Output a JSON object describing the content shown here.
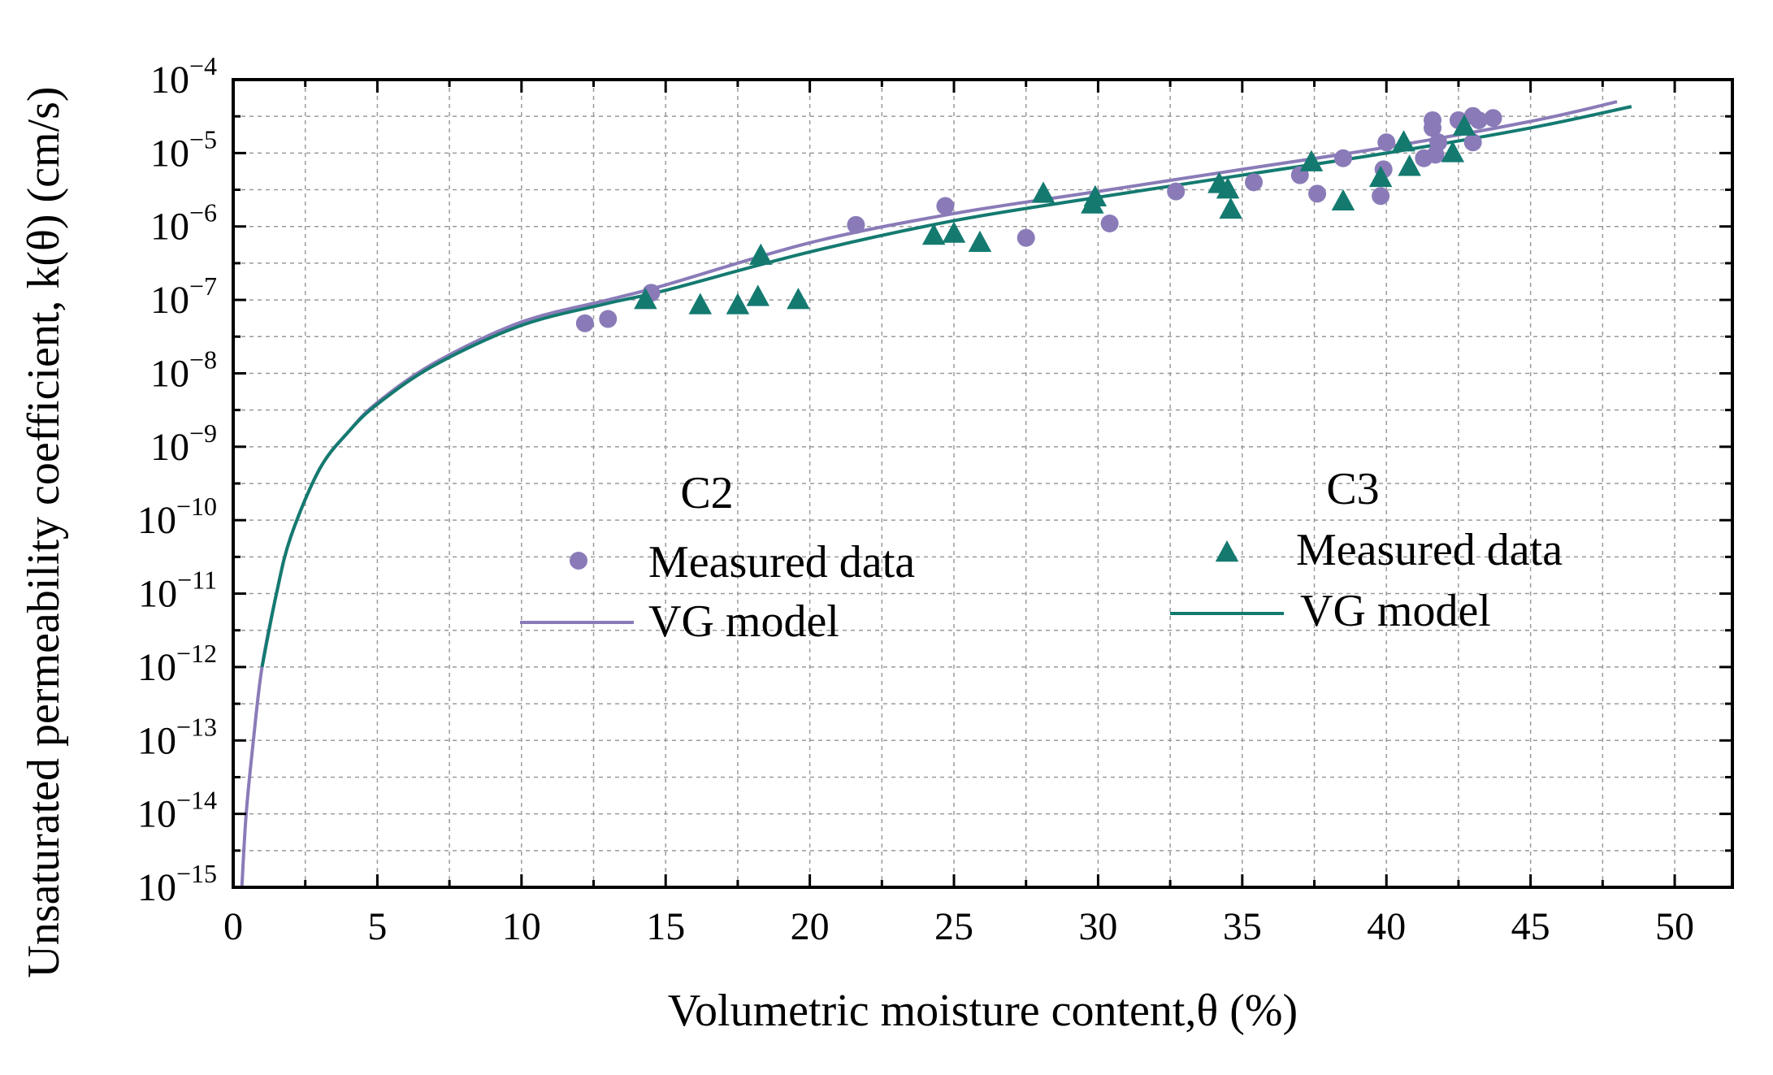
{
  "chart_data": {
    "type": "scatter",
    "xlabel": "Volumetric moisture content,θ (%)",
    "ylabel": "Unsaturated permeability coefficient, k(θ) (cm/s)",
    "xlim": [
      0,
      52
    ],
    "ylim_log10": [
      -15,
      -4
    ],
    "y_scale": "log",
    "grid": true,
    "x_ticks": [
      0,
      5,
      10,
      15,
      20,
      25,
      30,
      35,
      40,
      45,
      50
    ],
    "x_tick_labels": [
      "0",
      "5",
      "10",
      "15",
      "20",
      "25",
      "30",
      "35",
      "40",
      "45",
      "50"
    ],
    "y_tick_exponents": [
      -15,
      -14,
      -13,
      -12,
      -11,
      -10,
      -9,
      -8,
      -7,
      -6,
      -5,
      -4
    ],
    "y_tick_base": "10",
    "legend_groups": [
      {
        "header": "C2",
        "measured_label": "Measured data",
        "model_label": "VG model",
        "marker": "circle",
        "color": "#8a7bb8",
        "line_color": "#8a7bb8"
      },
      {
        "header": "C3",
        "measured_label": "Measured data",
        "model_label": "VG model",
        "marker": "triangle",
        "color": "#147a70",
        "line_color": "#147a70"
      }
    ],
    "series": [
      {
        "name": "C2 Measured data",
        "marker": "circle",
        "color": "#8a7bb8",
        "x": [
          12.2,
          13.0,
          14.5,
          21.6,
          24.7,
          27.5,
          30.4,
          32.7,
          35.4,
          37.0,
          37.6,
          38.5,
          39.8,
          39.9,
          40.0,
          41.3,
          41.6,
          41.6,
          41.7,
          41.8,
          42.5,
          43.0,
          43.0,
          43.2,
          43.7
        ],
        "y": [
          4.8e-08,
          5.5e-08,
          1.25e-07,
          1.05e-06,
          1.9e-06,
          7e-07,
          1.1e-06,
          3e-06,
          4e-06,
          5e-06,
          2.8e-06,
          8.5e-06,
          2.6e-06,
          6e-06,
          1.4e-05,
          8.5e-06,
          2.2e-05,
          2.8e-05,
          9.5e-06,
          1.4e-05,
          2.8e-05,
          3.2e-05,
          1.4e-05,
          2.8e-05,
          3e-05
        ]
      },
      {
        "name": "C3 Measured data",
        "marker": "triangle",
        "color": "#147a70",
        "x": [
          14.3,
          16.2,
          17.5,
          18.2,
          18.3,
          19.6,
          24.3,
          25.0,
          25.9,
          28.1,
          29.8,
          29.9,
          34.2,
          34.5,
          34.6,
          37.4,
          38.5,
          39.8,
          40.6,
          40.8,
          42.3,
          42.7
        ],
        "y": [
          1e-07,
          8.5e-08,
          8.5e-08,
          1.1e-07,
          4e-07,
          1e-07,
          7.5e-07,
          8e-07,
          6e-07,
          2.8e-06,
          2e-06,
          2.5e-06,
          3.8e-06,
          3.2e-06,
          1.7e-06,
          7.5e-06,
          2.2e-06,
          4.6e-06,
          1.4e-05,
          6.5e-06,
          1e-05,
          2.3e-05
        ]
      },
      {
        "name": "C2 VG model",
        "color": "#8a7bb8",
        "x": [
          0.3,
          0.45,
          0.7,
          1.0,
          1.5,
          2.0,
          3.0,
          4.0,
          5.0,
          7.0,
          10.0,
          13.0,
          15.0,
          20.0,
          25.0,
          30.0,
          35.0,
          40.0,
          45.0,
          48.0
        ],
        "y": [
          1e-15,
          1e-14,
          1e-13,
          1e-12,
          1e-11,
          6e-11,
          5e-10,
          1.6e-09,
          4e-09,
          1.4e-08,
          5e-08,
          1e-07,
          1.6e-07,
          6e-07,
          1.5e-06,
          3e-06,
          6e-06,
          1.2e-05,
          2.7e-05,
          5e-05
        ]
      },
      {
        "name": "C3 VG model",
        "color": "#147a70",
        "x": [
          1.0,
          1.5,
          2.0,
          3.0,
          4.0,
          5.0,
          7.0,
          10.0,
          13.0,
          15.0,
          20.0,
          25.0,
          30.0,
          35.0,
          40.0,
          45.0,
          48.5
        ],
        "y": [
          1e-12,
          1e-11,
          6e-11,
          5e-10,
          1.6e-09,
          3.8e-09,
          1.3e-08,
          4.5e-08,
          9e-08,
          1.35e-07,
          4.5e-07,
          1.2e-06,
          2.5e-06,
          5e-06,
          1e-05,
          2.2e-05,
          4.3e-05
        ]
      }
    ]
  }
}
